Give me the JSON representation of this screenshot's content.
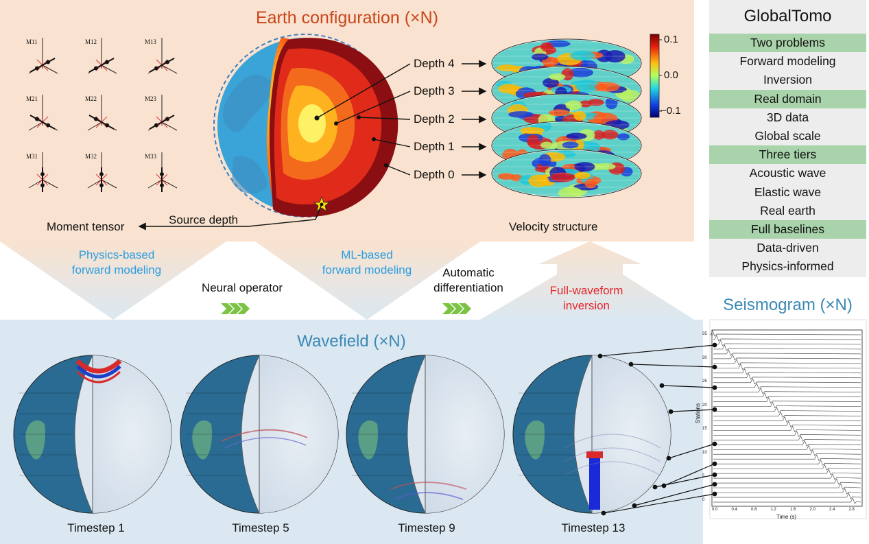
{
  "earth_config": {
    "title": "Earth configuration (×N)",
    "moment_tensor": "Moment tensor",
    "source_depth": "Source depth",
    "velocity_structure": "Velocity structure",
    "depths": [
      "Depth 4",
      "Depth 3",
      "Depth 2",
      "Depth 1",
      "Depth 0"
    ],
    "tensor_labels": [
      "M11",
      "M12",
      "M13",
      "M21",
      "M22",
      "M23",
      "M31",
      "M32",
      "M33"
    ],
    "colorbar_ticks": [
      "0.1",
      "0.0",
      "−0.1"
    ]
  },
  "flows": {
    "physics": [
      "Physics-based",
      "forward modeling"
    ],
    "neural": "Neural operator",
    "ml": [
      "ML-based",
      "forward modeling"
    ],
    "autodiff": [
      "Automatic",
      "differentiation"
    ],
    "fwi": [
      "Full-waveform",
      "inversion"
    ]
  },
  "wavefield": {
    "title": "Wavefield (×N)",
    "timesteps": [
      "Timestep 1",
      "Timestep 5",
      "Timestep 9",
      "Timestep 13"
    ]
  },
  "seismogram": {
    "title": "Seismogram (×N)",
    "xlabel": "Time (s)",
    "ylabel": "Stations",
    "xticks": [
      "0.0",
      "0.4",
      "0.8",
      "1.2",
      "1.6",
      "2.0",
      "2.4",
      "2.8"
    ],
    "yticks": [
      "35",
      "30",
      "25",
      "20",
      "15",
      "10",
      "5",
      "0"
    ]
  },
  "sidebar": {
    "title": "GlobalTomo",
    "rows": [
      {
        "text": "Two problems",
        "highlight": true
      },
      {
        "text": "Forward modeling",
        "highlight": false
      },
      {
        "text": "Inversion",
        "highlight": false
      },
      {
        "text": "Real domain",
        "highlight": true
      },
      {
        "text": "3D data",
        "highlight": false
      },
      {
        "text": "Global scale",
        "highlight": false
      },
      {
        "text": "Three tiers",
        "highlight": true
      },
      {
        "text": "Acoustic wave",
        "highlight": false
      },
      {
        "text": "Elastic wave",
        "highlight": false
      },
      {
        "text": "Real earth",
        "highlight": false
      },
      {
        "text": "Full baselines",
        "highlight": true
      },
      {
        "text": "Data-driven",
        "highlight": false
      },
      {
        "text": "Physics-informed",
        "highlight": false
      }
    ]
  }
}
